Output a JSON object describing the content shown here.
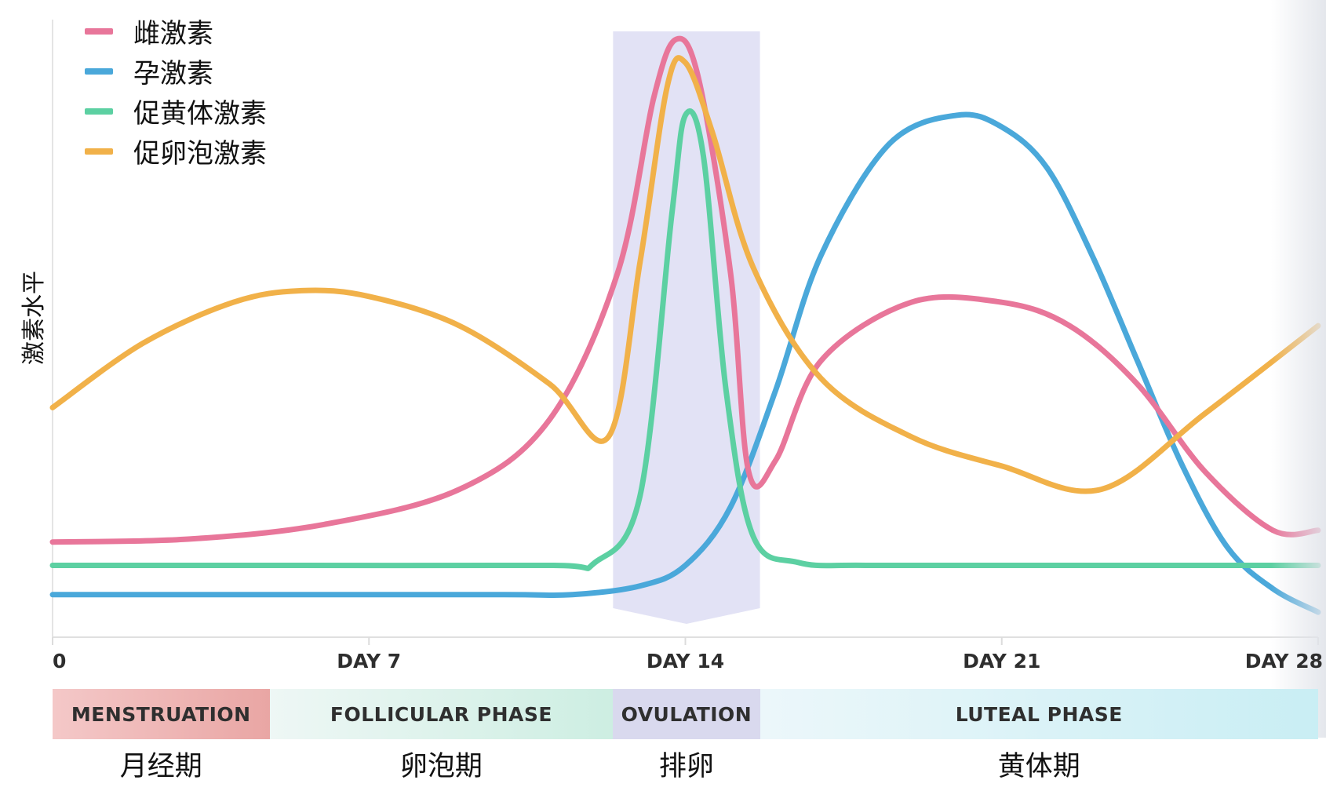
{
  "chart_data": {
    "type": "line",
    "ylabel": "激素水平",
    "xlabel": "",
    "xlim": [
      0,
      28
    ],
    "ylim": [
      0,
      100
    ],
    "grid": false,
    "legend_position": "top-left",
    "x_ticks": [
      {
        "value": 0,
        "label": "0"
      },
      {
        "value": 7,
        "label": "DAY 7"
      },
      {
        "value": 14,
        "label": "DAY 14"
      },
      {
        "value": 21,
        "label": "DAY 21"
      },
      {
        "value": 28,
        "label": "DAY 28"
      }
    ],
    "series": [
      {
        "name": "雌激素",
        "color": "#e8769a",
        "x": [
          0,
          3,
          6,
          9,
          11,
          12.5,
          13.3,
          13.8,
          14.3,
          15,
          15.4,
          16,
          17,
          19,
          21,
          22.5,
          24,
          25.5,
          27,
          28
        ],
        "y": [
          14,
          14.5,
          17,
          23,
          35,
          60,
          90,
          100,
          93,
          60,
          26,
          28,
          45,
          55,
          55,
          51,
          41,
          26,
          16,
          16
        ]
      },
      {
        "name": "孕激素",
        "color": "#4aa8da",
        "x": [
          0,
          5,
          10,
          11.5,
          13,
          14,
          15,
          16,
          17,
          18.5,
          20,
          21,
          22,
          23,
          24,
          25,
          26,
          27,
          28
        ],
        "y": [
          5,
          5,
          5,
          5,
          6.5,
          10,
          20,
          40,
          63,
          82,
          87,
          85,
          78,
          63,
          45,
          27,
          13,
          6,
          2
        ]
      },
      {
        "name": "促黄体激素",
        "color": "#5cd0a2",
        "x": [
          0,
          5,
          11,
          12,
          13,
          13.7,
          14,
          14.4,
          14.9,
          15.5,
          16.5,
          18,
          22,
          28
        ],
        "y": [
          10,
          10,
          10,
          10.5,
          22,
          70,
          87,
          80,
          40,
          15,
          10.5,
          10,
          10,
          10
        ]
      },
      {
        "name": "促卵泡激素",
        "color": "#f1b149",
        "x": [
          0,
          2,
          4,
          5.5,
          7,
          9,
          11,
          12.3,
          13,
          13.6,
          14,
          14.6,
          15.5,
          17,
          19,
          21,
          23.2,
          25.5,
          28
        ],
        "y": [
          37,
          48,
          55,
          57,
          56,
          51,
          41,
          32,
          62,
          92,
          96,
          84,
          61,
          42,
          32,
          27,
          23,
          36,
          51
        ]
      }
    ]
  },
  "phases": [
    {
      "en": "MENSTRUATION",
      "cn": "月经期",
      "start": 0,
      "end": 4.8,
      "color_start": "#f4c8c8",
      "color_end": "#e9a6a4"
    },
    {
      "en": "FOLLICULAR PHASE",
      "cn": "卵泡期",
      "start": 4.8,
      "end": 12.4,
      "color_start": "#eef7f5",
      "color_end": "#cdeee2"
    },
    {
      "en": "OVULATION",
      "cn": "排卵",
      "start": 12.4,
      "end": 15.65,
      "color_start": "#d9d9ee",
      "color_end": "#d9d9ee"
    },
    {
      "en": "LUTEAL PHASE",
      "cn": "黄体期",
      "start": 15.65,
      "end": 28,
      "color_start": "#ecf7fa",
      "color_end": "#c9eef4"
    }
  ],
  "ovulation_band": {
    "start": 12.4,
    "end": 15.65,
    "color": "#d8d8f1"
  }
}
